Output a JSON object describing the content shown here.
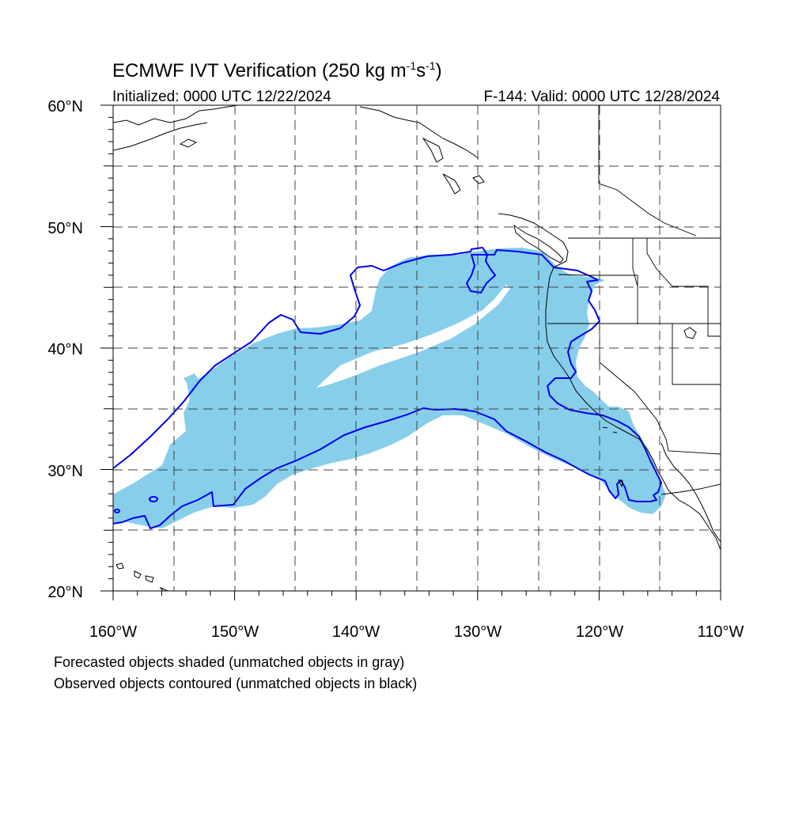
{
  "title": {
    "main": "ECMWF IVT Verification (250 kg m",
    "main_exp1": "-1",
    "main_mid": "s",
    "main_exp2": "-1",
    "main_end": ")",
    "initialized": "Initialized: 0000 UTC 12/22/2024",
    "valid": "F-144: Valid: 0000 UTC 12/28/2024"
  },
  "axes": {
    "lon_labels": [
      "160°W",
      "150°W",
      "140°W",
      "130°W",
      "120°W",
      "110°W"
    ],
    "lat_labels": [
      "60°N",
      "50°N",
      "40°N",
      "30°N",
      "20°N"
    ],
    "lon_range": [
      -160,
      -110
    ],
    "lat_range": [
      20,
      60
    ]
  },
  "notes": {
    "line1": "Forecasted objects shaded (unmatched objects in gray)",
    "line2": "Observed objects contoured (unmatched objects in black)"
  },
  "colors": {
    "forecast_fill": "#87ceeb",
    "observed_contour": "#0000ee",
    "coastline": "#000000"
  }
}
